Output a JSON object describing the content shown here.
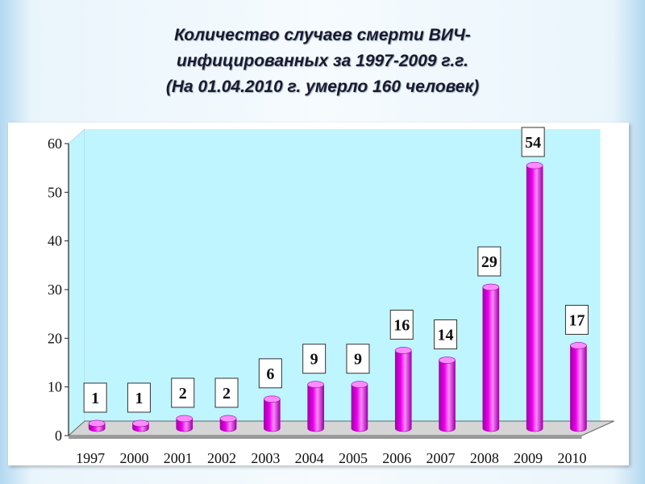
{
  "title": {
    "line1": "Количество случаев смерти ВИЧ-",
    "line2": "инфицированных за 1997-2009 г.г.",
    "line3": "(На 01.04.2010 г. умерло 160 человек)"
  },
  "colors": {
    "bar": "#ee00ee",
    "bar_dark": "#a000a8",
    "bar_light": "#ff8cff",
    "wall": "#bff5ff",
    "floor": "#d5d5d5"
  },
  "chart_data": {
    "type": "bar",
    "title": "Количество случаев смерти ВИЧ-инфицированных за 1997-2009 г.г. (На 01.04.2010 г. умерло 160 человек)",
    "categories": [
      "1997",
      "2000",
      "2001",
      "2002",
      "2003",
      "2004",
      "2005",
      "2006",
      "2007",
      "2008",
      "2009",
      "2010"
    ],
    "values": [
      1,
      1,
      2,
      2,
      6,
      9,
      9,
      16,
      14,
      29,
      54,
      17
    ],
    "value_labels": [
      "1",
      "1",
      "2",
      "2",
      "6",
      "9",
      "9",
      "16",
      "14",
      "29",
      "54",
      "17"
    ],
    "y_ticks": [
      "0",
      "10",
      "20",
      "30",
      "40",
      "50",
      "60"
    ],
    "ylim": [
      0,
      60
    ],
    "style": "3d-cylinder",
    "grid": false,
    "legend": "none"
  }
}
